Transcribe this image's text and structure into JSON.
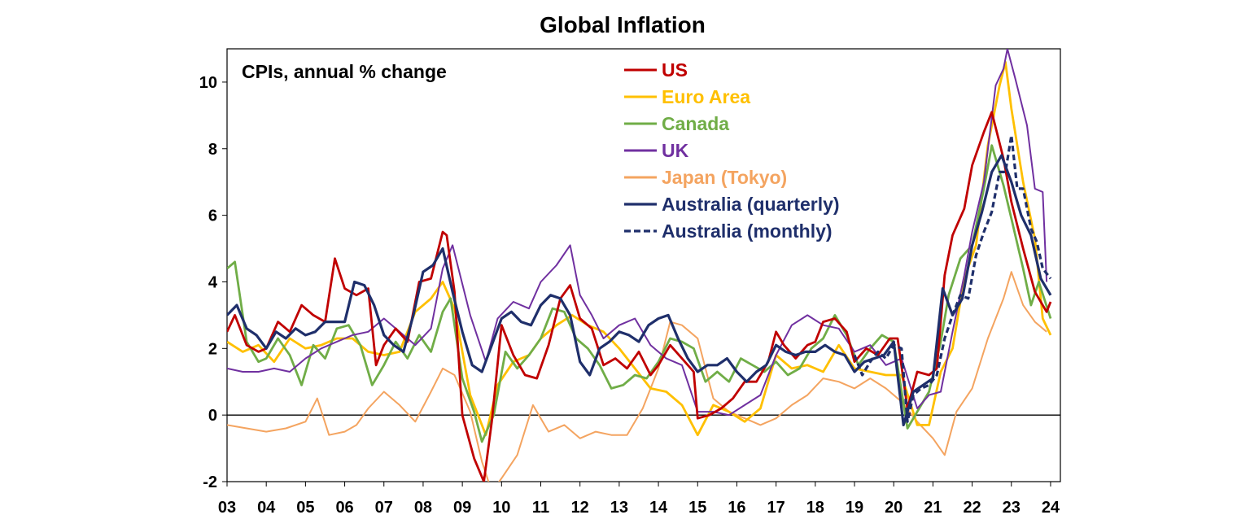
{
  "chart_data": {
    "type": "line",
    "title": "Global Inflation",
    "subtitle": "CPIs, annual % change",
    "xlabel": "",
    "ylabel": "",
    "xlim": [
      2003.0,
      2024.25
    ],
    "ylim": [
      -2,
      11
    ],
    "y_ticks": [
      10,
      8,
      6,
      4,
      2,
      0,
      -2
    ],
    "x_tick_labels": [
      "03",
      "04",
      "05",
      "06",
      "07",
      "08",
      "09",
      "10",
      "11",
      "12",
      "13",
      "14",
      "15",
      "16",
      "17",
      "18",
      "19",
      "20",
      "21",
      "22",
      "23",
      "24"
    ],
    "legend_position": "top-right",
    "series": [
      {
        "name": "US",
        "color": "#c00000",
        "style": "solid",
        "x": [
          2003.0,
          2003.2,
          2003.5,
          2003.8,
          2004.0,
          2004.3,
          2004.6,
          2004.9,
          2005.2,
          2005.5,
          2005.75,
          2006.0,
          2006.3,
          2006.6,
          2006.8,
          2007.0,
          2007.3,
          2007.6,
          2007.9,
          2008.2,
          2008.5,
          2008.6,
          2008.8,
          2009.0,
          2009.3,
          2009.55,
          2009.75,
          2010.0,
          2010.3,
          2010.6,
          2010.9,
          2011.2,
          2011.5,
          2011.75,
          2012.0,
          2012.3,
          2012.6,
          2012.9,
          2013.2,
          2013.5,
          2013.8,
          2014.0,
          2014.3,
          2014.6,
          2014.9,
          2015.0,
          2015.3,
          2015.6,
          2015.9,
          2016.2,
          2016.5,
          2016.8,
          2017.0,
          2017.2,
          2017.5,
          2017.8,
          2018.0,
          2018.2,
          2018.5,
          2018.8,
          2019.0,
          2019.3,
          2019.6,
          2019.9,
          2020.1,
          2020.35,
          2020.6,
          2020.9,
          2021.1,
          2021.3,
          2021.5,
          2021.8,
          2022.0,
          2022.3,
          2022.5,
          2022.8,
          2023.0,
          2023.3,
          2023.6,
          2023.9,
          2024.0
        ],
        "values": [
          2.5,
          3.0,
          2.1,
          1.9,
          2.0,
          2.8,
          2.5,
          3.3,
          3.0,
          2.8,
          4.7,
          3.8,
          3.6,
          3.8,
          1.5,
          2.1,
          2.6,
          2.2,
          4.0,
          4.1,
          5.5,
          5.4,
          3.7,
          0.0,
          -1.3,
          -2.0,
          -0.2,
          2.7,
          1.8,
          1.2,
          1.1,
          2.1,
          3.5,
          3.9,
          2.9,
          2.6,
          1.5,
          1.7,
          1.4,
          1.9,
          1.2,
          1.5,
          2.1,
          1.7,
          1.3,
          -0.1,
          0.0,
          0.2,
          0.5,
          1.0,
          1.0,
          1.6,
          2.5,
          2.1,
          1.7,
          2.1,
          2.2,
          2.8,
          2.9,
          2.5,
          1.6,
          2.0,
          1.8,
          2.3,
          2.3,
          0.2,
          1.3,
          1.2,
          1.4,
          4.2,
          5.4,
          6.2,
          7.5,
          8.5,
          9.1,
          7.7,
          6.4,
          5.0,
          3.7,
          3.1,
          3.4
        ]
      },
      {
        "name": "Euro Area",
        "color": "#ffc000",
        "style": "solid",
        "x": [
          2003.0,
          2003.4,
          2003.8,
          2004.2,
          2004.6,
          2005.0,
          2005.4,
          2005.8,
          2006.2,
          2006.6,
          2007.0,
          2007.4,
          2007.8,
          2008.2,
          2008.5,
          2008.8,
          2009.2,
          2009.6,
          2009.9,
          2010.3,
          2010.7,
          2011.0,
          2011.4,
          2011.8,
          2012.2,
          2012.6,
          2013.0,
          2013.4,
          2013.8,
          2014.2,
          2014.6,
          2015.0,
          2015.4,
          2015.8,
          2016.2,
          2016.6,
          2017.0,
          2017.4,
          2017.8,
          2018.2,
          2018.6,
          2019.0,
          2019.4,
          2019.8,
          2020.2,
          2020.6,
          2020.9,
          2021.2,
          2021.5,
          2021.8,
          2022.1,
          2022.4,
          2022.7,
          2022.85,
          2023.0,
          2023.3,
          2023.6,
          2023.8,
          2024.0
        ],
        "values": [
          2.2,
          1.9,
          2.1,
          1.6,
          2.3,
          2.0,
          2.1,
          2.3,
          2.3,
          1.9,
          1.8,
          1.9,
          3.1,
          3.5,
          4.0,
          3.2,
          0.6,
          -0.6,
          0.9,
          1.6,
          1.8,
          2.3,
          2.7,
          3.0,
          2.7,
          2.5,
          2.0,
          1.4,
          0.8,
          0.7,
          0.3,
          -0.6,
          0.3,
          0.1,
          -0.2,
          0.2,
          1.8,
          1.4,
          1.5,
          1.3,
          2.1,
          1.4,
          1.3,
          1.2,
          1.2,
          -0.3,
          -0.3,
          1.3,
          2.0,
          4.1,
          5.1,
          8.1,
          9.9,
          10.6,
          9.2,
          7.0,
          5.3,
          2.9,
          2.4
        ]
      },
      {
        "name": "Canada",
        "color": "#70ad47",
        "style": "solid",
        "x": [
          2003.0,
          2003.2,
          2003.5,
          2003.8,
          2004.0,
          2004.3,
          2004.6,
          2004.9,
          2005.2,
          2005.5,
          2005.8,
          2006.1,
          2006.4,
          2006.7,
          2007.0,
          2007.3,
          2007.6,
          2007.9,
          2008.2,
          2008.5,
          2008.7,
          2009.0,
          2009.3,
          2009.5,
          2009.8,
          2010.1,
          2010.4,
          2010.7,
          2011.0,
          2011.3,
          2011.6,
          2011.9,
          2012.2,
          2012.5,
          2012.8,
          2013.1,
          2013.4,
          2013.7,
          2014.0,
          2014.3,
          2014.6,
          2014.9,
          2015.2,
          2015.5,
          2015.8,
          2016.1,
          2016.4,
          2016.7,
          2017.0,
          2017.3,
          2017.6,
          2017.9,
          2018.2,
          2018.5,
          2018.8,
          2019.1,
          2019.4,
          2019.7,
          2020.0,
          2020.35,
          2020.6,
          2020.9,
          2021.2,
          2021.4,
          2021.7,
          2022.0,
          2022.3,
          2022.5,
          2022.8,
          2023.0,
          2023.3,
          2023.5,
          2023.7,
          2024.0
        ],
        "values": [
          4.4,
          4.6,
          2.2,
          1.6,
          1.7,
          2.3,
          1.8,
          0.9,
          2.1,
          1.7,
          2.6,
          2.7,
          2.1,
          0.9,
          1.5,
          2.2,
          1.7,
          2.4,
          1.9,
          3.1,
          3.5,
          1.1,
          0.1,
          -0.8,
          0.0,
          1.9,
          1.4,
          1.8,
          2.3,
          3.2,
          3.1,
          2.3,
          2.0,
          1.5,
          0.8,
          0.9,
          1.2,
          1.1,
          1.6,
          2.3,
          2.2,
          2.0,
          1.0,
          1.3,
          1.0,
          1.7,
          1.5,
          1.3,
          1.6,
          1.2,
          1.4,
          2.0,
          2.3,
          3.0,
          2.4,
          1.5,
          2.0,
          2.4,
          2.2,
          -0.4,
          0.1,
          0.7,
          2.2,
          3.6,
          4.7,
          5.1,
          6.8,
          8.1,
          6.9,
          5.9,
          4.4,
          3.3,
          4.0,
          2.9
        ]
      },
      {
        "name": "UK",
        "color": "#7030a0",
        "style": "solid",
        "x": [
          2003.0,
          2003.4,
          2003.8,
          2004.2,
          2004.6,
          2005.0,
          2005.4,
          2005.8,
          2006.2,
          2006.6,
          2007.0,
          2007.4,
          2007.8,
          2008.2,
          2008.5,
          2008.75,
          2009.2,
          2009.6,
          2009.9,
          2010.3,
          2010.7,
          2011.0,
          2011.4,
          2011.75,
          2012.0,
          2012.3,
          2012.6,
          2013.0,
          2013.4,
          2013.8,
          2014.2,
          2014.6,
          2015.0,
          2015.4,
          2015.8,
          2016.2,
          2016.6,
          2017.0,
          2017.4,
          2017.8,
          2018.2,
          2018.6,
          2019.0,
          2019.4,
          2019.8,
          2020.2,
          2020.6,
          2020.9,
          2021.2,
          2021.5,
          2021.8,
          2022.0,
          2022.3,
          2022.6,
          2022.8,
          2022.9,
          2023.1,
          2023.4,
          2023.6,
          2023.8,
          2023.9
        ],
        "values": [
          1.4,
          1.3,
          1.3,
          1.4,
          1.3,
          1.7,
          2.0,
          2.2,
          2.4,
          2.5,
          2.9,
          2.5,
          2.1,
          2.6,
          4.4,
          5.1,
          3.0,
          1.6,
          2.9,
          3.4,
          3.2,
          4.0,
          4.5,
          5.1,
          3.6,
          3.0,
          2.3,
          2.7,
          2.9,
          2.1,
          1.7,
          1.5,
          0.1,
          0.1,
          0.0,
          0.3,
          0.6,
          1.8,
          2.7,
          3.0,
          2.7,
          2.6,
          1.9,
          2.1,
          1.5,
          1.7,
          0.2,
          0.6,
          0.7,
          2.5,
          4.2,
          5.5,
          7.0,
          9.9,
          10.4,
          11.0,
          10.1,
          8.7,
          6.8,
          6.7,
          4.0
        ]
      },
      {
        "name": "Japan (Tokyo)",
        "color": "#f4a460",
        "style": "solid",
        "x": [
          2003.0,
          2003.5,
          2004.0,
          2004.5,
          2005.0,
          2005.3,
          2005.6,
          2006.0,
          2006.3,
          2006.6,
          2007.0,
          2007.4,
          2007.8,
          2008.2,
          2008.5,
          2008.8,
          2009.2,
          2009.5,
          2009.75,
          2010.0,
          2010.4,
          2010.8,
          2011.2,
          2011.6,
          2012.0,
          2012.4,
          2012.8,
          2013.2,
          2013.6,
          2014.0,
          2014.3,
          2014.6,
          2015.0,
          2015.4,
          2015.8,
          2016.2,
          2016.6,
          2017.0,
          2017.4,
          2017.8,
          2018.2,
          2018.6,
          2019.0,
          2019.4,
          2019.8,
          2020.2,
          2020.6,
          2021.0,
          2021.3,
          2021.6,
          2022.0,
          2022.4,
          2022.8,
          2023.0,
          2023.3,
          2023.6,
          2023.9
        ],
        "values": [
          -0.3,
          -0.4,
          -0.5,
          -0.4,
          -0.2,
          0.5,
          -0.6,
          -0.5,
          -0.3,
          0.2,
          0.7,
          0.3,
          -0.2,
          0.7,
          1.4,
          1.2,
          0.1,
          -1.4,
          -2.3,
          -1.9,
          -1.2,
          0.3,
          -0.5,
          -0.3,
          -0.7,
          -0.5,
          -0.6,
          -0.6,
          0.2,
          1.4,
          2.8,
          2.7,
          2.3,
          0.5,
          0.1,
          -0.1,
          -0.3,
          -0.1,
          0.3,
          0.6,
          1.1,
          1.0,
          0.8,
          1.1,
          0.8,
          0.4,
          -0.2,
          -0.7,
          -1.2,
          0.1,
          0.8,
          2.3,
          3.5,
          4.3,
          3.3,
          2.8,
          2.5
        ]
      },
      {
        "name": "Australia (quarterly)",
        "color": "#1f2f6b",
        "style": "solid",
        "x": [
          2003.0,
          2003.25,
          2003.5,
          2003.75,
          2004.0,
          2004.25,
          2004.5,
          2004.75,
          2005.0,
          2005.25,
          2005.5,
          2005.75,
          2006.0,
          2006.25,
          2006.5,
          2006.75,
          2007.0,
          2007.25,
          2007.5,
          2007.75,
          2008.0,
          2008.25,
          2008.5,
          2008.75,
          2009.0,
          2009.25,
          2009.5,
          2009.75,
          2010.0,
          2010.25,
          2010.5,
          2010.75,
          2011.0,
          2011.25,
          2011.5,
          2011.75,
          2012.0,
          2012.25,
          2012.5,
          2012.75,
          2013.0,
          2013.25,
          2013.5,
          2013.75,
          2014.0,
          2014.25,
          2014.5,
          2014.75,
          2015.0,
          2015.25,
          2015.5,
          2015.75,
          2016.0,
          2016.25,
          2016.5,
          2016.75,
          2017.0,
          2017.25,
          2017.5,
          2017.75,
          2018.0,
          2018.25,
          2018.5,
          2018.75,
          2019.0,
          2019.25,
          2019.5,
          2019.75,
          2020.0,
          2020.25,
          2020.5,
          2020.75,
          2021.0,
          2021.25,
          2021.5,
          2021.75,
          2022.0,
          2022.25,
          2022.5,
          2022.75,
          2023.0,
          2023.25,
          2023.5,
          2023.75,
          2024.0
        ],
        "values": [
          3.0,
          3.3,
          2.6,
          2.4,
          2.0,
          2.5,
          2.3,
          2.6,
          2.4,
          2.5,
          2.8,
          2.8,
          2.8,
          4.0,
          3.9,
          3.3,
          2.4,
          2.1,
          1.9,
          3.0,
          4.3,
          4.5,
          5.0,
          3.7,
          2.5,
          1.5,
          1.3,
          2.1,
          2.9,
          3.1,
          2.8,
          2.7,
          3.3,
          3.6,
          3.5,
          3.0,
          1.6,
          1.2,
          2.0,
          2.2,
          2.5,
          2.4,
          2.2,
          2.7,
          2.9,
          3.0,
          2.3,
          1.7,
          1.3,
          1.5,
          1.5,
          1.7,
          1.3,
          1.0,
          1.3,
          1.5,
          2.1,
          1.9,
          1.8,
          1.9,
          1.9,
          2.1,
          1.9,
          1.8,
          1.3,
          1.6,
          1.7,
          1.8,
          2.2,
          -0.3,
          0.7,
          0.9,
          1.1,
          3.8,
          3.0,
          3.5,
          5.1,
          6.1,
          7.3,
          7.8,
          7.0,
          6.0,
          5.4,
          4.1,
          3.6
        ]
      },
      {
        "name": "Australia (monthly)",
        "color": "#1f2f6b",
        "style": "dashed",
        "x": [
          2019.0,
          2019.2,
          2019.4,
          2019.6,
          2019.8,
          2020.0,
          2020.2,
          2020.35,
          2020.5,
          2020.7,
          2020.9,
          2021.1,
          2021.3,
          2021.5,
          2021.7,
          2021.9,
          2022.1,
          2022.3,
          2022.5,
          2022.7,
          2022.85,
          2023.0,
          2023.15,
          2023.3,
          2023.5,
          2023.65,
          2023.8,
          2024.0
        ],
        "values": [
          1.8,
          1.2,
          1.6,
          1.9,
          1.7,
          2.1,
          2.0,
          -0.2,
          0.6,
          0.8,
          0.9,
          1.2,
          2.3,
          3.0,
          3.6,
          3.5,
          4.8,
          5.5,
          6.1,
          7.3,
          7.3,
          8.4,
          6.8,
          6.8,
          5.6,
          5.2,
          4.4,
          4.1
        ]
      }
    ]
  }
}
